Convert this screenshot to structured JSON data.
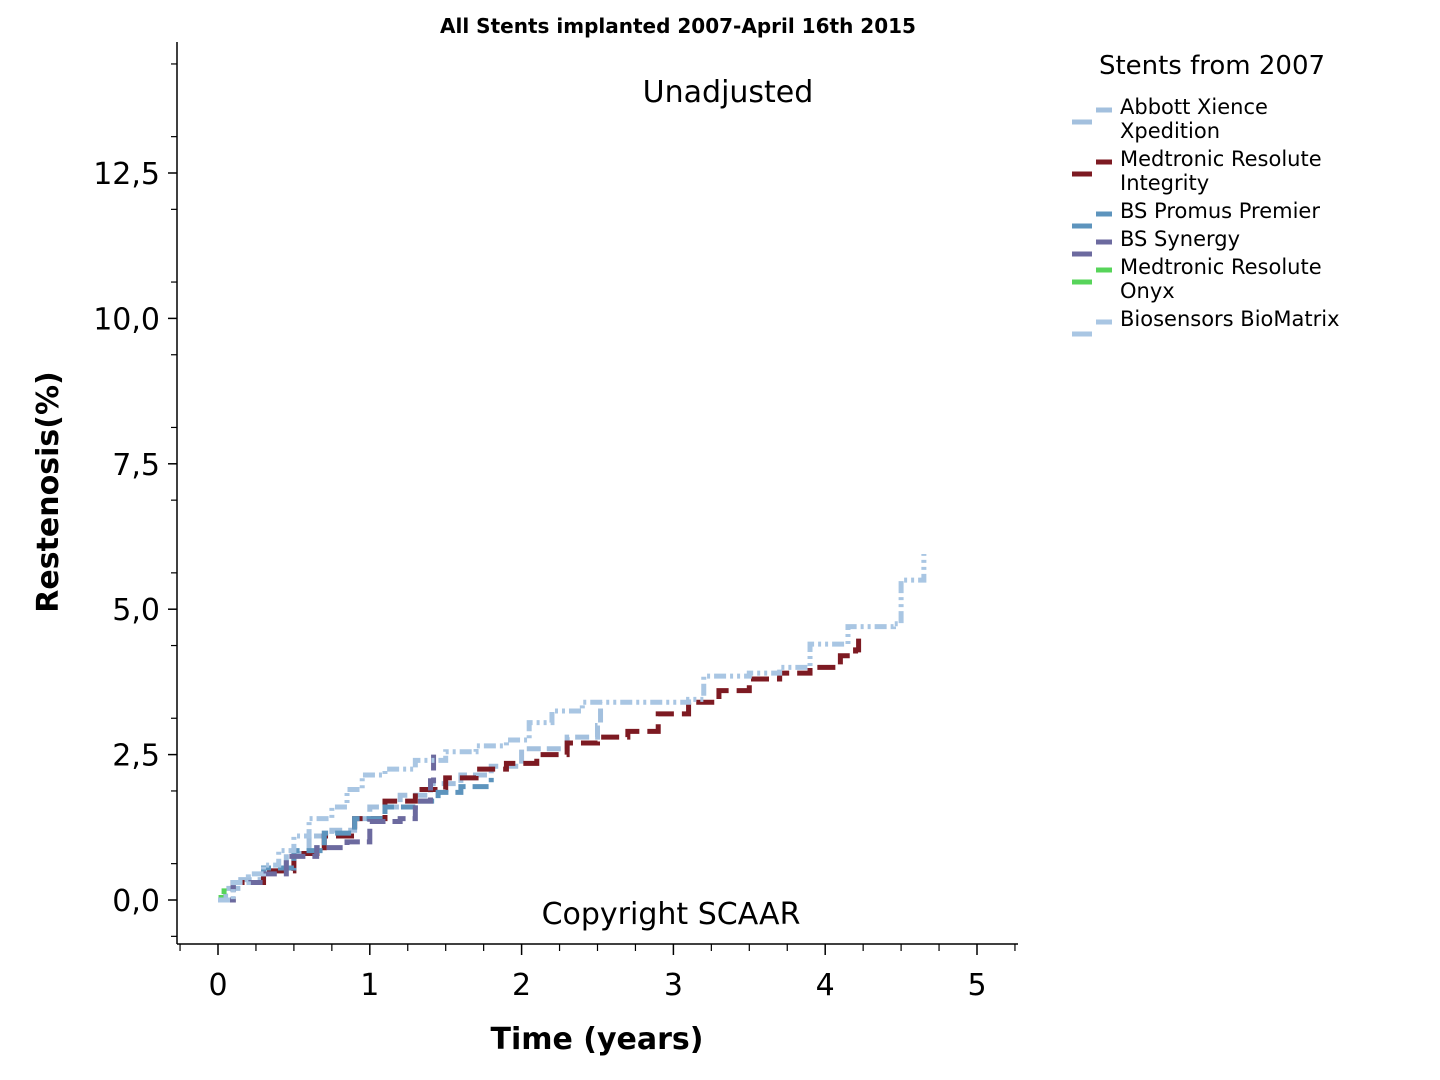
{
  "chart_data": {
    "type": "line",
    "title": "All Stents implanted 2007-April 16th 2015",
    "annotations": {
      "top": "Unadjusted",
      "bottom": "Copyright SCAAR"
    },
    "xlabel": "Time (years)",
    "ylabel": "Restenosis(%)",
    "xlim": [
      -0.25,
      5.25
    ],
    "ylim": [
      -0.75,
      14.5
    ],
    "x_ticks": [
      0,
      1,
      2,
      3,
      4,
      5
    ],
    "x_tick_labels": [
      "0",
      "1",
      "2",
      "3",
      "4",
      "5"
    ],
    "y_ticks": [
      0,
      2.5,
      5,
      7.5,
      10,
      12.5
    ],
    "y_tick_labels": [
      "0,0",
      "2,5",
      "5,0",
      "7,5",
      "10,0",
      "12,5"
    ],
    "grid": false,
    "legend": {
      "title": "Stents from 2007",
      "placement": "right"
    },
    "series": [
      {
        "name": "Abbott Xience Xpedition",
        "label_lines": [
          "Abbott Xience",
          "Xpedition"
        ],
        "color": "#a3c0de",
        "dash": "14,6",
        "points": [
          [
            0,
            0
          ],
          [
            0.05,
            0.2
          ],
          [
            0.15,
            0.35
          ],
          [
            0.3,
            0.5
          ],
          [
            0.45,
            0.8
          ],
          [
            0.6,
            1.1
          ],
          [
            0.75,
            1.2
          ],
          [
            0.9,
            1.4
          ],
          [
            1.0,
            1.6
          ],
          [
            1.2,
            1.8
          ],
          [
            1.4,
            2.0
          ],
          [
            1.6,
            2.15
          ],
          [
            1.8,
            2.3
          ],
          [
            2.0,
            2.6
          ],
          [
            2.3,
            2.8
          ],
          [
            2.5,
            3.0
          ],
          [
            2.52,
            3.4
          ]
        ]
      },
      {
        "name": "Medtronic Resolute Integrity",
        "label_lines": [
          "Medtronic Resolute",
          "Integrity"
        ],
        "color": "#7d1a22",
        "dash": "18,8",
        "points": [
          [
            0,
            0
          ],
          [
            0.1,
            0.3
          ],
          [
            0.3,
            0.5
          ],
          [
            0.5,
            0.8
          ],
          [
            0.7,
            1.1
          ],
          [
            0.9,
            1.4
          ],
          [
            1.1,
            1.7
          ],
          [
            1.3,
            1.9
          ],
          [
            1.5,
            2.1
          ],
          [
            1.7,
            2.25
          ],
          [
            1.9,
            2.35
          ],
          [
            2.1,
            2.5
          ],
          [
            2.3,
            2.7
          ],
          [
            2.5,
            2.8
          ],
          [
            2.7,
            2.9
          ],
          [
            2.9,
            3.2
          ],
          [
            3.1,
            3.4
          ],
          [
            3.3,
            3.6
          ],
          [
            3.5,
            3.8
          ],
          [
            3.7,
            3.9
          ],
          [
            3.9,
            4.0
          ],
          [
            4.1,
            4.2
          ],
          [
            4.2,
            4.3
          ],
          [
            4.22,
            4.6
          ]
        ]
      },
      {
        "name": "BS Promus Premier",
        "label_lines": [
          "BS Promus Premier"
        ],
        "color": "#5d94bd",
        "dash": "16,7",
        "points": [
          [
            0,
            0
          ],
          [
            0.1,
            0.3
          ],
          [
            0.3,
            0.55
          ],
          [
            0.5,
            0.85
          ],
          [
            0.7,
            1.15
          ],
          [
            0.9,
            1.4
          ],
          [
            1.1,
            1.6
          ],
          [
            1.3,
            1.7
          ],
          [
            1.45,
            1.85
          ],
          [
            1.6,
            1.95
          ],
          [
            1.8,
            2.1
          ]
        ]
      },
      {
        "name": "BS Synergy",
        "label_lines": [
          "BS Synergy"
        ],
        "color": "#6c6a9f",
        "dash": "16,7",
        "points": [
          [
            0,
            0
          ],
          [
            0.1,
            0.3
          ],
          [
            0.3,
            0.45
          ],
          [
            0.45,
            0.75
          ],
          [
            0.65,
            0.9
          ],
          [
            0.85,
            1.0
          ],
          [
            1.0,
            1.35
          ],
          [
            1.2,
            1.4
          ],
          [
            1.3,
            1.7
          ],
          [
            1.4,
            2.05
          ],
          [
            1.42,
            2.5
          ]
        ]
      },
      {
        "name": "Medtronic Resolute Onyx",
        "label_lines": [
          "Medtronic Resolute",
          "Onyx"
        ],
        "color": "#57d45a",
        "dash": "8,4",
        "points": [
          [
            0,
            0
          ],
          [
            0.02,
            0.1
          ],
          [
            0.04,
            0.2
          ]
        ]
      },
      {
        "name": "Biosensors BioMatrix",
        "label_lines": [
          "Biosensors BioMatrix"
        ],
        "color": "#a9c6e3",
        "dash": "12,4,3,4,3,4",
        "points": [
          [
            0,
            0
          ],
          [
            0.1,
            0.3
          ],
          [
            0.2,
            0.45
          ],
          [
            0.3,
            0.6
          ],
          [
            0.4,
            0.85
          ],
          [
            0.5,
            1.1
          ],
          [
            0.6,
            1.4
          ],
          [
            0.75,
            1.6
          ],
          [
            0.85,
            1.9
          ],
          [
            0.95,
            2.15
          ],
          [
            1.1,
            2.25
          ],
          [
            1.3,
            2.4
          ],
          [
            1.5,
            2.55
          ],
          [
            1.7,
            2.65
          ],
          [
            1.9,
            2.75
          ],
          [
            2.05,
            3.05
          ],
          [
            2.2,
            3.25
          ],
          [
            2.4,
            3.4
          ],
          [
            2.6,
            3.4
          ],
          [
            2.8,
            3.4
          ],
          [
            3.1,
            3.45
          ],
          [
            3.2,
            3.85
          ],
          [
            3.5,
            3.9
          ],
          [
            3.7,
            4.0
          ],
          [
            3.9,
            4.4
          ],
          [
            4.15,
            4.7
          ],
          [
            4.45,
            4.75
          ],
          [
            4.5,
            5.5
          ],
          [
            4.65,
            5.95
          ]
        ]
      }
    ]
  }
}
